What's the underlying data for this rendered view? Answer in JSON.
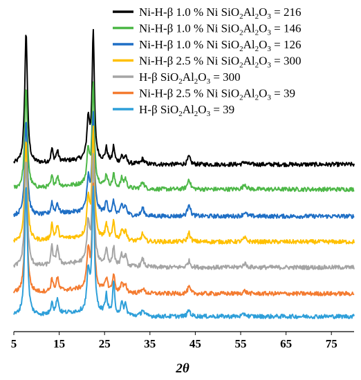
{
  "chart_data": {
    "type": "line",
    "title": "",
    "xlabel": "2θ",
    "ylabel": "",
    "xlim": [
      5,
      80
    ],
    "xticks": [
      "5",
      "15",
      "25",
      "35",
      "45",
      "55",
      "65",
      "75"
    ],
    "grid": false,
    "legend_position": "top-right",
    "peaks": [
      {
        "pos": 7.7,
        "width": 0.35,
        "name": "p7.7"
      },
      {
        "pos": 13.4,
        "width": 0.25,
        "name": "p13.4"
      },
      {
        "pos": 14.6,
        "width": 0.3,
        "name": "p14.6"
      },
      {
        "pos": 21.4,
        "width": 0.35,
        "name": "p21.4"
      },
      {
        "pos": 22.5,
        "width": 0.3,
        "name": "p22.5"
      },
      {
        "pos": 25.4,
        "width": 0.3,
        "name": "p25.4"
      },
      {
        "pos": 27.0,
        "width": 0.25,
        "name": "p27.0"
      },
      {
        "pos": 28.8,
        "width": 0.3,
        "name": "p28.8"
      },
      {
        "pos": 29.6,
        "width": 0.3,
        "name": "p29.6"
      },
      {
        "pos": 33.4,
        "width": 0.35,
        "name": "p33.4"
      },
      {
        "pos": 43.6,
        "width": 0.35,
        "name": "p43.6"
      },
      {
        "pos": 55.9,
        "width": 0.4,
        "name": "p55.9"
      }
    ],
    "series": [
      {
        "label_pre": "Ni-H-β 1.0 % Ni SiO",
        "label_post": " = 216",
        "color": "#000000",
        "offset": 6,
        "intensities": [
          100,
          10,
          8,
          30,
          96,
          10,
          12,
          5,
          5,
          4,
          6,
          2
        ]
      },
      {
        "label_pre": "Ni-H-β 1.0 % Ni SiO",
        "label_post": " = 146",
        "color": "#4eb848",
        "offset": 5,
        "intensities": [
          76,
          8,
          8,
          26,
          76,
          9,
          10,
          7,
          7,
          6,
          8,
          4
        ]
      },
      {
        "label_pre": "Ni-H-β 1.0 % Ni SiO",
        "label_post": " = 126",
        "color": "#1f6fc5",
        "offset": 4,
        "intensities": [
          74,
          9,
          8,
          25,
          74,
          9,
          10,
          7,
          7,
          6,
          10,
          3
        ]
      },
      {
        "label_pre": "Ni-H-β 2.5 % Ni SiO",
        "label_post": " = 300",
        "color": "#ffc000",
        "offset": 3,
        "intensities": [
          78,
          12,
          10,
          30,
          84,
          11,
          14,
          8,
          8,
          6,
          7,
          3
        ]
      },
      {
        "label_pre": "H-β SiO",
        "label_post": " = 300",
        "color": "#a5a5a5",
        "offset": 2,
        "intensities": [
          82,
          14,
          14,
          30,
          80,
          12,
          14,
          8,
          8,
          6,
          5,
          3
        ]
      },
      {
        "label_pre": "Ni-H-β 2.5 % Ni SiO",
        "label_post": " = 39",
        "color": "#f47b30",
        "offset": 1,
        "intensities": [
          82,
          10,
          10,
          30,
          80,
          10,
          14,
          6,
          6,
          4,
          5,
          2
        ]
      },
      {
        "label_pre": "H-β SiO",
        "label_post": " = 39",
        "color": "#2e9fd9",
        "offset": 0,
        "intensities": [
          100,
          10,
          12,
          30,
          95,
          14,
          24,
          8,
          8,
          5,
          5,
          2
        ]
      }
    ]
  }
}
